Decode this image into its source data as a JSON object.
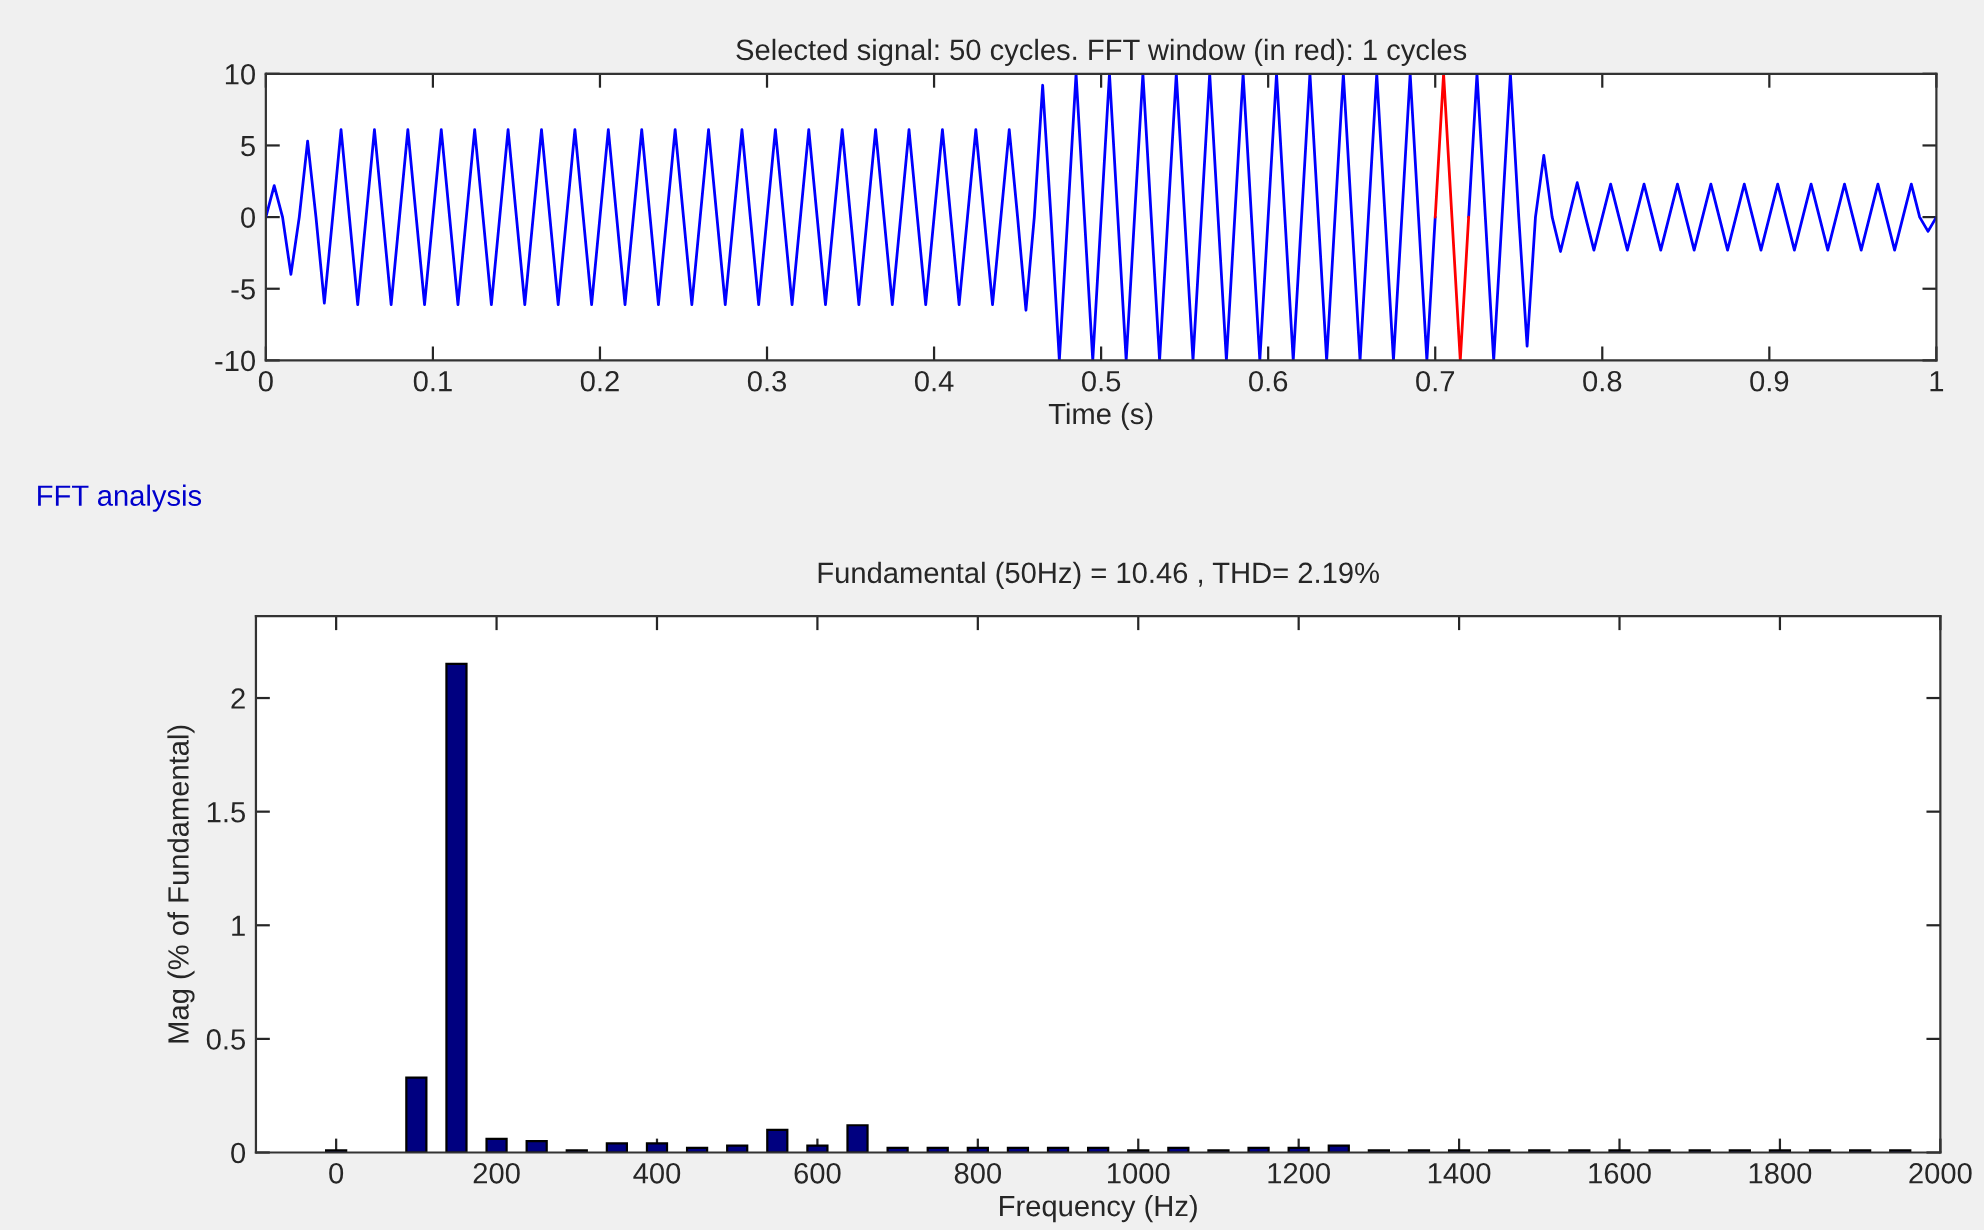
{
  "chart_data": [
    {
      "type": "line",
      "title": "Selected signal: 50 cycles. FFT window (in red): 1 cycles",
      "xlabel": "Time (s)",
      "xlim": [
        0,
        1
      ],
      "ylim": [
        -10,
        10
      ],
      "xticks": [
        0,
        0.1,
        0.2,
        0.3,
        0.4,
        0.5,
        0.6,
        0.7,
        0.8,
        0.9,
        1
      ],
      "yticks": [
        -10,
        -5,
        0,
        5,
        10
      ],
      "grid": false,
      "legend": false,
      "marker": "none",
      "line_style": "solid",
      "series": [
        {
          "color": "#0000ff",
          "x": [
            0,
            0.005,
            0.01,
            0.015,
            0.02,
            0.025,
            0.03,
            0.035,
            0.04,
            0.045,
            0.05,
            0.055,
            0.06,
            0.065,
            0.07,
            0.075,
            0.08,
            0.085,
            0.09,
            0.095,
            0.1,
            0.105,
            0.11,
            0.115,
            0.12,
            0.125,
            0.13,
            0.135,
            0.14,
            0.145,
            0.15,
            0.155,
            0.16,
            0.165,
            0.17,
            0.175,
            0.18,
            0.185,
            0.19,
            0.195,
            0.2,
            0.205,
            0.21,
            0.215,
            0.22,
            0.225,
            0.23,
            0.235,
            0.24,
            0.245,
            0.25,
            0.255,
            0.26,
            0.265,
            0.27,
            0.275,
            0.28,
            0.285,
            0.29,
            0.295,
            0.3,
            0.305,
            0.31,
            0.315,
            0.32,
            0.325,
            0.33,
            0.335,
            0.34,
            0.345,
            0.35,
            0.355,
            0.36,
            0.365,
            0.37,
            0.375,
            0.38,
            0.385,
            0.39,
            0.395,
            0.4,
            0.405,
            0.41,
            0.415,
            0.42,
            0.425,
            0.43,
            0.435,
            0.44,
            0.445,
            0.45,
            0.455,
            0.46,
            0.465,
            0.47,
            0.475,
            0.48,
            0.485,
            0.49,
            0.495,
            0.5,
            0.505,
            0.51,
            0.515,
            0.52,
            0.525,
            0.53,
            0.535,
            0.54,
            0.545,
            0.55,
            0.555,
            0.56,
            0.565,
            0.57,
            0.575,
            0.58,
            0.585,
            0.59,
            0.595,
            0.6,
            0.605,
            0.61,
            0.615,
            0.62,
            0.625,
            0.63,
            0.635,
            0.64,
            0.645,
            0.65,
            0.655,
            0.66,
            0.665,
            0.67,
            0.675,
            0.68,
            0.685,
            0.69,
            0.695,
            0.7,
            0.705,
            0.71,
            0.715,
            0.72,
            0.725,
            0.73,
            0.735,
            0.74,
            0.745,
            0.75,
            0.755,
            0.76,
            0.765,
            0.77,
            0.775,
            0.78,
            0.785,
            0.79,
            0.795,
            0.8,
            0.805,
            0.81,
            0.815,
            0.82,
            0.825,
            0.83,
            0.835,
            0.84,
            0.845,
            0.85,
            0.855,
            0.86,
            0.865,
            0.87,
            0.875,
            0.88,
            0.885,
            0.89,
            0.895,
            0.9,
            0.905,
            0.91,
            0.915,
            0.92,
            0.925,
            0.93,
            0.935,
            0.94,
            0.945,
            0.95,
            0.955,
            0.96,
            0.965,
            0.97,
            0.975,
            0.98,
            0.985,
            0.99,
            0.995,
            1
          ],
          "values": [
            0,
            2.2,
            0,
            -4,
            0,
            5.3,
            0,
            -6,
            0,
            6.1,
            0,
            -6.1,
            0,
            6.1,
            0,
            -6.1,
            0,
            6.1,
            0,
            -6.1,
            0,
            6.1,
            0,
            -6.1,
            0,
            6.1,
            0,
            -6.1,
            0,
            6.1,
            0,
            -6.1,
            0,
            6.1,
            0,
            -6.1,
            0,
            6.1,
            0,
            -6.1,
            0,
            6.1,
            0,
            -6.1,
            0,
            6.1,
            0,
            -6.1,
            0,
            6.1,
            0,
            -6.1,
            0,
            6.1,
            0,
            -6.1,
            0,
            6.1,
            0,
            -6.1,
            0,
            6.1,
            0,
            -6.1,
            0,
            6.1,
            0,
            -6.1,
            0,
            6.1,
            0,
            -6.1,
            0,
            6.1,
            0,
            -6.1,
            0,
            6.1,
            0,
            -6.1,
            0,
            6.1,
            0,
            -6.1,
            0,
            6.1,
            0,
            -6.1,
            0,
            6.1,
            0,
            -6.5,
            0,
            9.2,
            0,
            -10,
            0,
            10,
            0,
            -10,
            0,
            10,
            0,
            -10,
            0,
            10,
            0,
            -10,
            0,
            10,
            0,
            -10,
            0,
            10,
            0,
            -10,
            0,
            10,
            0,
            -10,
            0,
            10,
            0,
            -10,
            0,
            10,
            0,
            -10,
            0,
            10,
            0,
            -10,
            0,
            10,
            0,
            -10,
            0,
            10,
            0,
            -10,
            0,
            null,
            null,
            null,
            0,
            10,
            0,
            -10,
            0,
            10,
            0,
            -9,
            0,
            4.3,
            0,
            -2.4,
            0,
            2.4,
            0,
            -2.3,
            0,
            2.3,
            0,
            -2.3,
            0,
            2.3,
            0,
            -2.3,
            0,
            2.3,
            0,
            -2.3,
            0,
            2.3,
            0,
            -2.3,
            0,
            2.3,
            0,
            -2.3,
            0,
            2.3,
            0,
            -2.3,
            0,
            2.3,
            0,
            -2.3,
            0,
            2.3,
            0,
            -2.3,
            0,
            2.3,
            0,
            -2.3,
            0,
            2.3,
            0,
            -1.0,
            0
          ]
        },
        {
          "color": "#ff0000",
          "x": [
            0.7,
            0.705,
            0.71,
            0.715,
            0.72
          ],
          "values": [
            0,
            10,
            0,
            -10,
            0
          ]
        }
      ]
    },
    {
      "type": "bar",
      "title": "Fundamental (50Hz) = 10.46 , THD= 2.19%",
      "xlabel": "Frequency (Hz)",
      "ylabel": "Mag (% of Fundamental)",
      "annotations": [
        "FFT analysis"
      ],
      "xlim": [
        -100,
        2000
      ],
      "ylim": [
        0,
        2.36
      ],
      "xticks": [
        0,
        200,
        400,
        600,
        800,
        1000,
        1200,
        1400,
        1600,
        1800,
        2000
      ],
      "yticks": [
        0,
        0.5,
        1,
        1.5,
        2
      ],
      "grid": false,
      "legend": false,
      "x": [
        0,
        50,
        100,
        150,
        200,
        250,
        300,
        350,
        400,
        450,
        500,
        550,
        600,
        650,
        700,
        750,
        800,
        850,
        900,
        950,
        1000,
        1050,
        1100,
        1150,
        1200,
        1250,
        1300,
        1350,
        1400,
        1450,
        1500,
        1550,
        1600,
        1650,
        1700,
        1750,
        1800,
        1850,
        1900,
        1950
      ],
      "series": [
        {
          "color": "#000080",
          "values": [
            0.01,
            null,
            0.33,
            2.15,
            0.06,
            0.05,
            0.01,
            0.04,
            0.04,
            0.02,
            0.03,
            0.1,
            0.03,
            0.12,
            0.02,
            0.02,
            0.02,
            0.02,
            0.02,
            0.02,
            0.01,
            0.02,
            0.01,
            0.02,
            0.02,
            0.03,
            0.01,
            0.01,
            0.01,
            0.01,
            0.01,
            0.01,
            0.01,
            0.01,
            0.01,
            0.01,
            0.01,
            0.01,
            0.01,
            0.01
          ]
        }
      ]
    }
  ]
}
